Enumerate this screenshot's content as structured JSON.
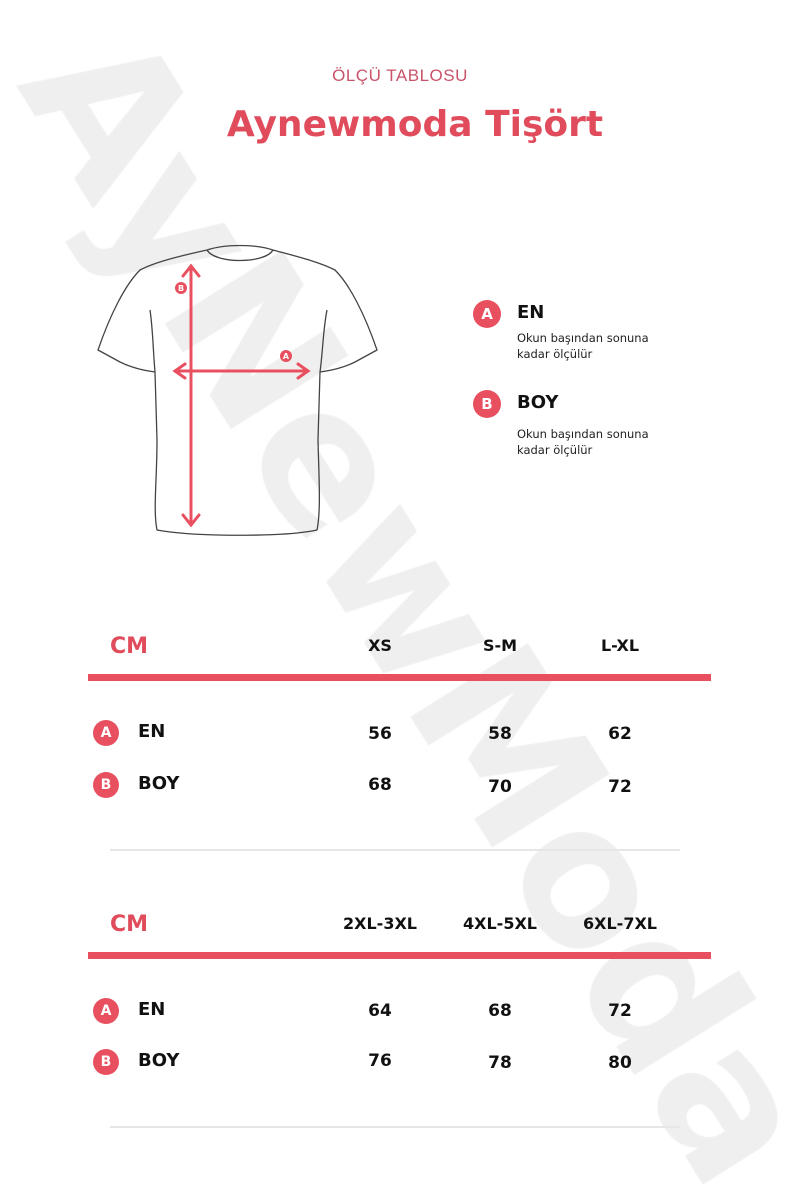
{
  "watermark": "AyNewModa",
  "header": {
    "subtitle": "ÖLÇÜ TABLOSU",
    "title": "Aynewmoda Tişört"
  },
  "accent_color": "#e8505f",
  "diagram": {
    "badge_a": "A",
    "badge_b": "B"
  },
  "legend": [
    {
      "badge": "A",
      "label": "EN",
      "desc_line1": "Okun başından sonuna",
      "desc_line2": "kadar ölçülür"
    },
    {
      "badge": "B",
      "label": "BOY",
      "desc_line1": "Okun başından sonuna",
      "desc_line2": "kadar ölçülür"
    }
  ],
  "tables": [
    {
      "unit": "CM",
      "sizes": [
        "XS",
        "S-M",
        "L-XL"
      ],
      "rows": [
        {
          "badge": "A",
          "label": "EN",
          "values": [
            "56",
            "58",
            "62"
          ]
        },
        {
          "badge": "B",
          "label": "BOY",
          "values": [
            "68",
            "70",
            "72"
          ]
        }
      ]
    },
    {
      "unit": "CM",
      "sizes": [
        "2XL-3XL",
        "4XL-5XL",
        "6XL-7XL"
      ],
      "rows": [
        {
          "badge": "A",
          "label": "EN",
          "values": [
            "64",
            "68",
            "72"
          ]
        },
        {
          "badge": "B",
          "label": "BOY",
          "values": [
            "76",
            "78",
            "80"
          ]
        }
      ]
    }
  ]
}
